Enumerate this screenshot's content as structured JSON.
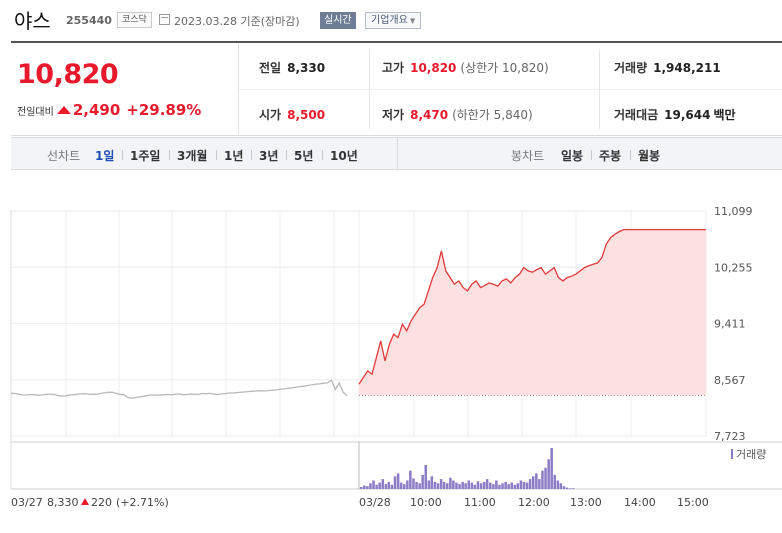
{
  "header": {
    "stock_name": "야스",
    "stock_code": "255440",
    "market": "코스닥",
    "date_text": "2023.03.28 기준(장마감)",
    "realtime_label": "실시간",
    "company_info_label": "기업개요",
    "company_info_caret": "▼"
  },
  "quote": {
    "price": "10,820",
    "change_label": "전일대비",
    "change_value": "2,490",
    "change_pct": "+29.89%",
    "prev_close_label": "전일",
    "prev_close": "8,330",
    "open_label": "시가",
    "open": "8,500",
    "high_label": "고가",
    "high": "10,820",
    "upper_limit": "(상한가 10,820)",
    "low_label": "저가",
    "low": "8,470",
    "lower_limit": "(하한가 5,840)",
    "volume_label": "거래량",
    "volume": "1,948,211",
    "amount_label": "거래대금",
    "amount": "19,644",
    "amount_unit": "백만"
  },
  "periods": {
    "title": "선차트",
    "items": [
      "1일",
      "1주일",
      "3개월",
      "1년",
      "3년",
      "5년",
      "10년"
    ],
    "selected": "1일",
    "candle_title": "봉차트",
    "candle_items": [
      "일봉",
      "주봉",
      "월봉"
    ]
  },
  "chart_data": {
    "type": "line",
    "y_ticks": [
      "11,099",
      "10,255",
      "9,411",
      "8,567",
      "7,723"
    ],
    "ylim": [
      7723,
      11099
    ],
    "prev_close": 8330,
    "volume_legend": "거래량",
    "prev_day": {
      "date": "03/27",
      "close": "8,330",
      "change": "220",
      "change_pct": "(+2.71%)",
      "values": [
        8365,
        8360,
        8350,
        8340,
        8338,
        8345,
        8342,
        8335,
        8340,
        8348,
        8352,
        8345,
        8330,
        8320,
        8325,
        8338,
        8340,
        8350,
        8355,
        8358,
        8352,
        8348,
        8350,
        8362,
        8370,
        8380,
        8378,
        8360,
        8345,
        8340,
        8300,
        8290,
        8300,
        8310,
        8320,
        8330,
        8340,
        8338,
        8335,
        8342,
        8345,
        8340,
        8350,
        8355,
        8340,
        8345,
        8350,
        8352,
        8345,
        8360,
        8358,
        8362,
        8350,
        8345,
        8355,
        8360,
        8370,
        8368,
        8375,
        8380,
        8385,
        8390,
        8395,
        8400,
        8402,
        8398,
        8405,
        8410,
        8415,
        8425,
        8430,
        8440,
        8445,
        8455,
        8465,
        8470,
        8480,
        8490,
        8500,
        8505,
        8515,
        8520,
        8560,
        8420,
        8520,
        8380,
        8330
      ]
    },
    "today": {
      "date": "03/28",
      "x_ticks": [
        "10:00",
        "11:00",
        "12:00",
        "13:00",
        "14:00",
        "15:00"
      ],
      "values": [
        8500,
        8600,
        8700,
        8650,
        8900,
        9150,
        8850,
        9100,
        9250,
        9200,
        9400,
        9300,
        9450,
        9550,
        9650,
        9700,
        9900,
        10100,
        10250,
        10500,
        10200,
        10100,
        10000,
        10050,
        9950,
        9900,
        10000,
        10050,
        9950,
        9980,
        10020,
        10000,
        9970,
        10050,
        10080,
        10020,
        10100,
        10150,
        10250,
        10200,
        10180,
        10220,
        10250,
        10150,
        10200,
        10250,
        10100,
        10050,
        10100,
        10120,
        10150,
        10200,
        10250,
        10280,
        10300,
        10320,
        10400,
        10600,
        10700,
        10750,
        10790,
        10820,
        10820,
        10820,
        10820,
        10820,
        10820,
        10820,
        10820,
        10820,
        10820,
        10820,
        10820,
        10820,
        10820,
        10820,
        10820,
        10820,
        10820,
        10820,
        10820
      ]
    },
    "volume_bars": [
      3,
      5,
      4,
      8,
      12,
      6,
      9,
      14,
      7,
      10,
      6,
      18,
      22,
      9,
      7,
      12,
      26,
      15,
      10,
      8,
      20,
      34,
      12,
      18,
      10,
      8,
      14,
      10,
      8,
      16,
      12,
      9,
      7,
      10,
      8,
      12,
      9,
      6,
      11,
      8,
      10,
      14,
      9,
      7,
      12,
      6,
      8,
      10,
      7,
      9,
      6,
      8,
      12,
      10,
      9,
      14,
      18,
      22,
      14,
      26,
      30,
      42,
      58,
      20,
      12,
      8,
      4,
      2,
      1,
      1
    ]
  },
  "colors": {
    "up": "#e8192c",
    "line_today": "#e03a3a",
    "fill_today": "#fde1e1",
    "line_prev": "#b9b9b9",
    "volume": "#8a7cc5",
    "grid": "#ececec"
  }
}
